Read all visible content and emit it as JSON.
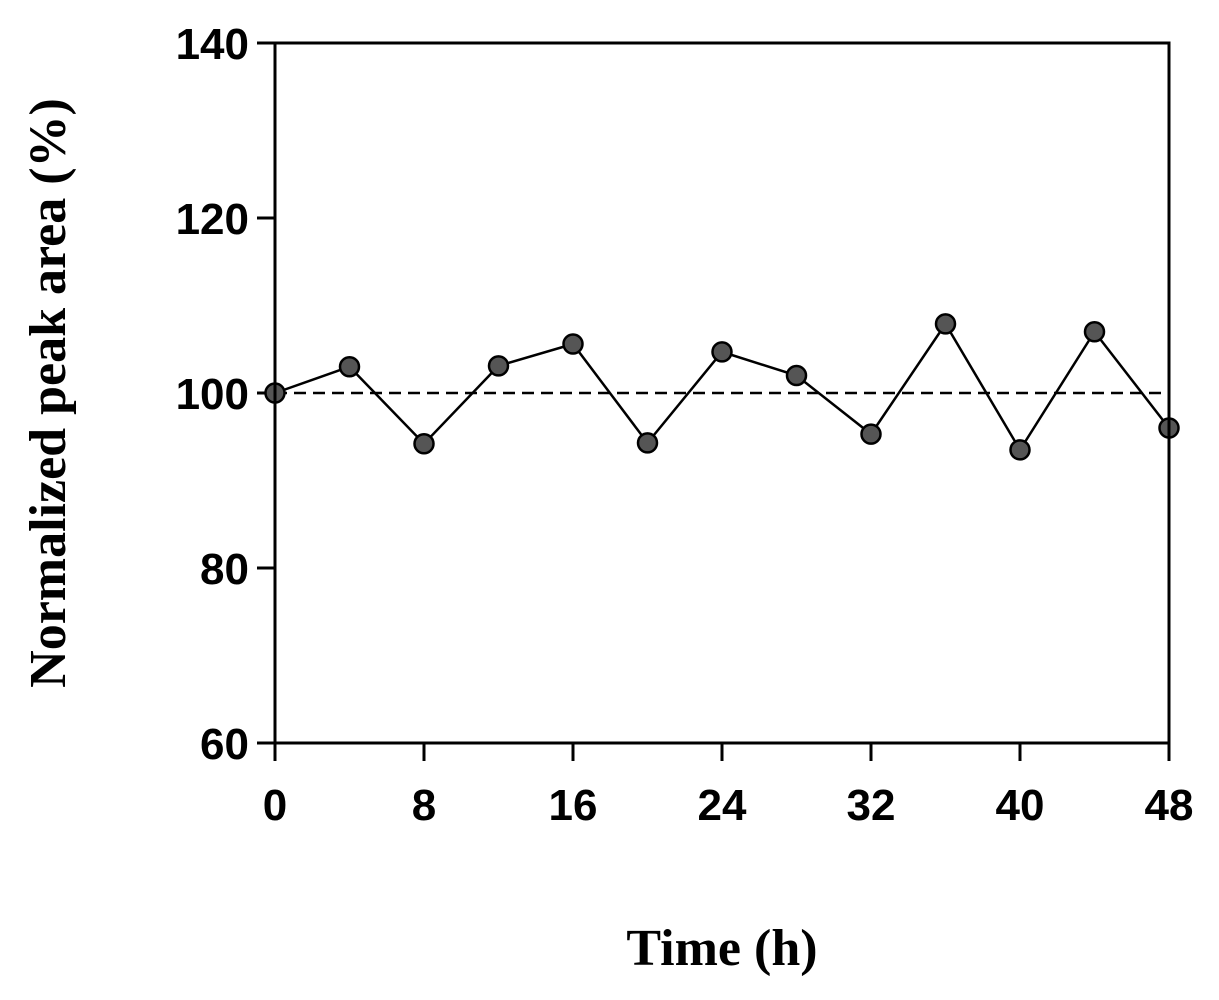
{
  "chart_data": {
    "type": "line",
    "title": "",
    "xlabel": "Time (h)",
    "ylabel": "Normalized peak area (%)",
    "xlim": [
      0,
      48
    ],
    "ylim": [
      60,
      140
    ],
    "xticks": [
      0,
      8,
      16,
      24,
      32,
      40,
      48
    ],
    "yticks": [
      60,
      80,
      100,
      120,
      140
    ],
    "grid": false,
    "series": [
      {
        "x": [
          0,
          4,
          8,
          12,
          16,
          20,
          24,
          28,
          32,
          36,
          40,
          44,
          48
        ],
        "y": [
          100,
          103,
          94.2,
          103.1,
          105.6,
          94.3,
          104.7,
          102,
          95.3,
          107.9,
          93.5,
          107,
          96
        ],
        "marker": "circle",
        "marker_color": "#555555",
        "line_color": "#000000"
      }
    ],
    "reference_line": {
      "y": 100,
      "style": "dashed",
      "color": "#000000"
    }
  }
}
